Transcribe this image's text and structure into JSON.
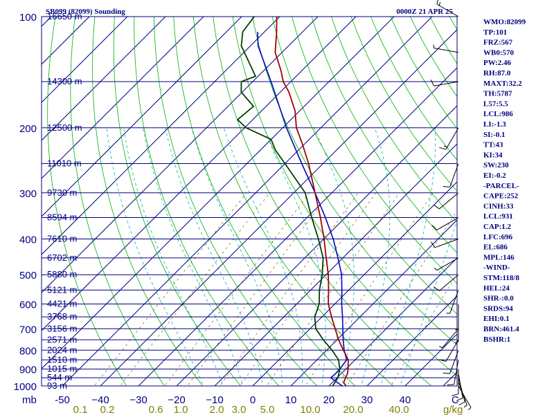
{
  "chart_data": {
    "type": "skew-t",
    "title_left": "SB099 (82099) Sounding",
    "title_right": "0000Z 21 APR 25",
    "pressure_unit": "mb",
    "pressure_levels": [
      100,
      200,
      300,
      400,
      500,
      600,
      700,
      800,
      900,
      1000
    ],
    "pressure_tick_labels": [
      "100",
      "200",
      "300",
      "400",
      "500",
      "600",
      "700",
      "800",
      "900",
      "1000"
    ],
    "height_lines": [
      {
        "p": 100,
        "label": "16650 m"
      },
      {
        "p": 150,
        "label": "14300 m"
      },
      {
        "p": 200,
        "label": "12500 m"
      },
      {
        "p": 250,
        "label": "11010 m"
      },
      {
        "p": 300,
        "label": "9730 m"
      },
      {
        "p": 350,
        "label": "8594 m"
      },
      {
        "p": 400,
        "label": "7610 m"
      },
      {
        "p": 450,
        "label": "6702 m"
      },
      {
        "p": 500,
        "label": "5880 m"
      },
      {
        "p": 550,
        "label": "5121 m"
      },
      {
        "p": 600,
        "label": "4421 m"
      },
      {
        "p": 650,
        "label": "3768 m"
      },
      {
        "p": 700,
        "label": "3156 m"
      },
      {
        "p": 750,
        "label": "2571 m"
      },
      {
        "p": 800,
        "label": "2024 m"
      },
      {
        "p": 850,
        "label": "1510 m"
      },
      {
        "p": 900,
        "label": "1015 m"
      },
      {
        "p": 950,
        "label": "544 m"
      },
      {
        "p": 1000,
        "label": "93 m"
      }
    ],
    "temperature_ticks": [
      -50,
      -40,
      -30,
      -20,
      -10,
      0,
      10,
      20,
      30,
      40
    ],
    "temperature_tick_labels": [
      "-50",
      "−40",
      "−30",
      "−20",
      "−10",
      "0",
      "10",
      "20",
      "30",
      "40"
    ],
    "temperature_unit": "C",
    "mixing_ratio_labels": [
      "0.1",
      "0.2",
      "0.6",
      "1.0",
      "2.0",
      "3.0",
      "5.0",
      "10.0",
      "20.0",
      "40.0"
    ],
    "mixing_ratio_unit": "g/kg",
    "temperature_profile": [
      {
        "p": 1000,
        "t": 24.5
      },
      {
        "p": 980,
        "t": 23.0
      },
      {
        "p": 950,
        "t": 22.2
      },
      {
        "p": 925,
        "t": 21.6
      },
      {
        "p": 900,
        "t": 20.6
      },
      {
        "p": 850,
        "t": 18.2
      },
      {
        "p": 800,
        "t": 14.4
      },
      {
        "p": 750,
        "t": 10.4
      },
      {
        "p": 700,
        "t": 6.6
      },
      {
        "p": 650,
        "t": 2.5
      },
      {
        "p": 600,
        "t": -1.7
      },
      {
        "p": 550,
        "t": -5.3
      },
      {
        "p": 500,
        "t": -9.4
      },
      {
        "p": 450,
        "t": -14.4
      },
      {
        "p": 400,
        "t": -19.9
      },
      {
        "p": 350,
        "t": -26.5
      },
      {
        "p": 300,
        "t": -34.4
      },
      {
        "p": 250,
        "t": -43.8
      },
      {
        "p": 220,
        "t": -50.9
      },
      {
        "p": 200,
        "t": -56.4
      },
      {
        "p": 180,
        "t": -61.2
      },
      {
        "p": 160,
        "t": -67.8
      },
      {
        "p": 150,
        "t": -72.0
      },
      {
        "p": 140,
        "t": -75.5
      },
      {
        "p": 125,
        "t": -81.8
      },
      {
        "p": 110,
        "t": -86.8
      },
      {
        "p": 100,
        "t": -90.8
      }
    ],
    "dewpoint_profile": [
      {
        "p": 1000,
        "t": 21.0
      },
      {
        "p": 950,
        "t": 20.2
      },
      {
        "p": 900,
        "t": 18.4
      },
      {
        "p": 850,
        "t": 15.7
      },
      {
        "p": 800,
        "t": 11.4
      },
      {
        "p": 750,
        "t": 6.4
      },
      {
        "p": 700,
        "t": 1.5
      },
      {
        "p": 650,
        "t": -1.9
      },
      {
        "p": 600,
        "t": -4.1
      },
      {
        "p": 550,
        "t": -7.7
      },
      {
        "p": 500,
        "t": -11.0
      },
      {
        "p": 450,
        "t": -15.2
      },
      {
        "p": 400,
        "t": -21.4
      },
      {
        "p": 350,
        "t": -28.8
      },
      {
        "p": 300,
        "t": -37.0
      },
      {
        "p": 250,
        "t": -50.0
      },
      {
        "p": 230,
        "t": -56.0
      },
      {
        "p": 215,
        "t": -60.0
      },
      {
        "p": 200,
        "t": -69.6
      },
      {
        "p": 190,
        "t": -74.0
      },
      {
        "p": 175,
        "t": -73.3
      },
      {
        "p": 160,
        "t": -80.3
      },
      {
        "p": 150,
        "t": -83.0
      },
      {
        "p": 145,
        "t": -80.7
      },
      {
        "p": 120,
        "t": -92.4
      },
      {
        "p": 110,
        "t": -95.7
      },
      {
        "p": 100,
        "t": -96.7
      }
    ],
    "parcel_profile": [
      {
        "p": 1000,
        "t": 23.5
      },
      {
        "p": 950,
        "t": 18.3
      },
      {
        "p": 930,
        "t": 18.5
      },
      {
        "p": 900,
        "t": 18.4
      },
      {
        "p": 850,
        "t": 17.8
      },
      {
        "p": 800,
        "t": 14.6
      },
      {
        "p": 750,
        "t": 11.6
      },
      {
        "p": 700,
        "t": 8.6
      },
      {
        "p": 650,
        "t": 5.4
      },
      {
        "p": 600,
        "t": 1.8
      },
      {
        "p": 550,
        "t": -1.8
      },
      {
        "p": 500,
        "t": -5.9
      },
      {
        "p": 450,
        "t": -11.3
      },
      {
        "p": 400,
        "t": -17.5
      },
      {
        "p": 350,
        "t": -25.2
      },
      {
        "p": 300,
        "t": -34.4
      },
      {
        "p": 250,
        "t": -45.6
      },
      {
        "p": 200,
        "t": -59.0
      },
      {
        "p": 150,
        "t": -75.2
      },
      {
        "p": 120,
        "t": -88.0
      },
      {
        "p": 110,
        "t": -91.8
      }
    ],
    "wind_barbs": [
      {
        "p": 1000,
        "dir": 150,
        "spd": 5
      },
      {
        "p": 975,
        "dir": 160,
        "spd": 8
      },
      {
        "p": 950,
        "dir": 165,
        "spd": 10
      },
      {
        "p": 925,
        "dir": 170,
        "spd": 10
      },
      {
        "p": 900,
        "dir": 180,
        "spd": 10
      },
      {
        "p": 850,
        "dir": 190,
        "spd": 10
      },
      {
        "p": 800,
        "dir": 200,
        "spd": 10
      },
      {
        "p": 750,
        "dir": 210,
        "spd": 10
      },
      {
        "p": 700,
        "dir": 220,
        "spd": 5
      },
      {
        "p": 650,
        "dir": 180,
        "spd": 5
      },
      {
        "p": 600,
        "dir": 180,
        "spd": 5
      },
      {
        "p": 550,
        "dir": 200,
        "spd": 5
      },
      {
        "p": 500,
        "dir": 230,
        "spd": 10
      },
      {
        "p": 450,
        "dir": 240,
        "spd": 5
      },
      {
        "p": 400,
        "dir": 250,
        "spd": 10
      },
      {
        "p": 350,
        "dir": 240,
        "spd": 10
      },
      {
        "p": 300,
        "dir": 230,
        "spd": 10
      },
      {
        "p": 250,
        "dir": 200,
        "spd": 10
      },
      {
        "p": 200,
        "dir": 210,
        "spd": 15
      },
      {
        "p": 150,
        "dir": 260,
        "spd": 10
      },
      {
        "p": 125,
        "dir": 280,
        "spd": 5
      },
      {
        "p": 100,
        "dir": 300,
        "spd": 15
      }
    ],
    "indices": [
      "WMO:82099",
      "TP:101",
      "FRZ:567",
      "WB0:570",
      "PW:2.46",
      "RH:87.0",
      "MAXT:32.2",
      "TH:5787",
      "L57:5.5",
      "LCL:986",
      "LI:-1.3",
      "SI:-0.1",
      "TT:43",
      "KI:34",
      "SW:230",
      "EI:-0.2",
      "-PARCEL-",
      "CAPE:252",
      "CINH:33",
      "LCL:931",
      "CAP:1.2",
      "LFC:696",
      "EL:686",
      "MPL:146",
      "-WIND-",
      "STM:118/8",
      "HEL:24",
      "SHR-:0.0",
      "SRDS:94",
      "EHI:0.1",
      "BRN:461.4",
      "BSHR:1"
    ],
    "colors": {
      "temperature": "#a00000",
      "dewpoint": "#004000",
      "parcel": "#0000c0",
      "isobar": "#000080",
      "isotherm": "#000080",
      "dry_adiabat": "#00b000",
      "moist_adiabat": "#00b0b0",
      "mixing_ratio": "#606000",
      "text": "#000080"
    }
  }
}
